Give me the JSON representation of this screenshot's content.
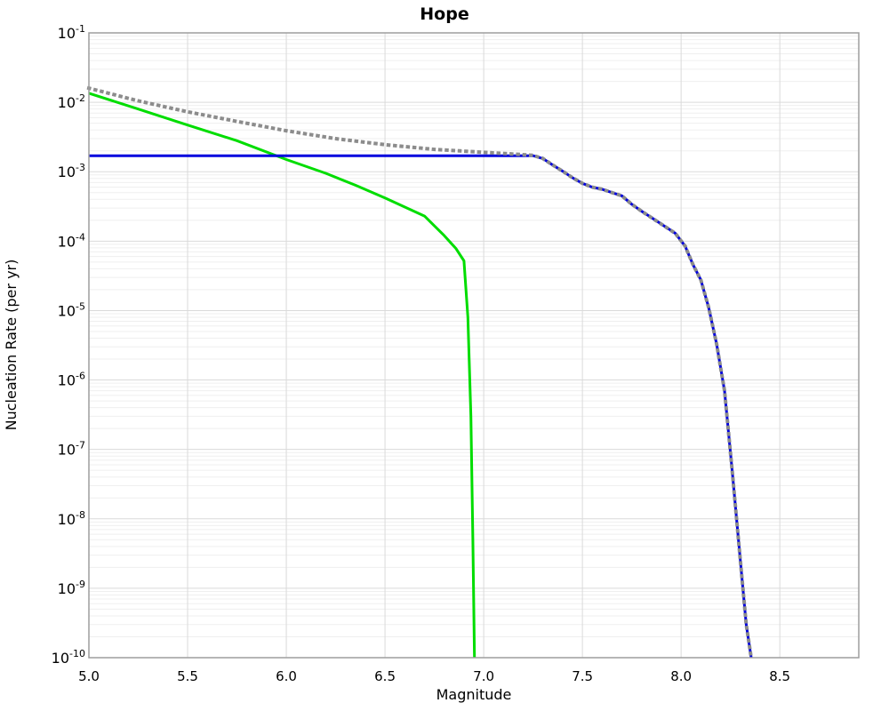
{
  "chart_data": {
    "type": "line",
    "title": "Hope",
    "xlabel": "Magnitude",
    "ylabel": "Nucleation Rate (per yr)",
    "xlim": [
      5.0,
      8.9
    ],
    "ylim": [
      1e-10,
      0.1
    ],
    "grid": true,
    "legend": "none",
    "x_ticks": [
      {
        "v": 5.0,
        "t": "5.0"
      },
      {
        "v": 5.5,
        "t": "5.5"
      },
      {
        "v": 6.0,
        "t": "6.0"
      },
      {
        "v": 6.5,
        "t": "6.5"
      },
      {
        "v": 7.0,
        "t": "7.0"
      },
      {
        "v": 7.5,
        "t": "7.5"
      },
      {
        "v": 8.0,
        "t": "8.0"
      },
      {
        "v": 8.5,
        "t": "8.5"
      }
    ],
    "y_tick_exponents": [
      -1,
      -2,
      -3,
      -4,
      -5,
      -6,
      -7,
      -8,
      -9,
      -10
    ],
    "series": [
      {
        "name": "solid-green",
        "color": "#00dd00",
        "style": "solid",
        "width": 3,
        "points": [
          [
            5.0,
            0.0135
          ],
          [
            5.25,
            0.008
          ],
          [
            5.5,
            0.0047
          ],
          [
            5.75,
            0.0028
          ],
          [
            6.0,
            0.0015
          ],
          [
            6.2,
            0.00095
          ],
          [
            6.35,
            0.00064
          ],
          [
            6.5,
            0.00042
          ],
          [
            6.7,
            0.00023
          ],
          [
            6.8,
            0.00012
          ],
          [
            6.86,
            7.8e-05
          ],
          [
            6.9,
            5.2e-05
          ],
          [
            6.92,
            8e-06
          ],
          [
            6.935,
            3e-07
          ],
          [
            6.945,
            5e-09
          ],
          [
            6.953,
            1e-10
          ]
        ]
      },
      {
        "name": "solid-blue",
        "color": "#0000dd",
        "style": "solid",
        "width": 3,
        "points": [
          [
            5.0,
            0.0017
          ],
          [
            7.25,
            0.0017
          ],
          [
            7.3,
            0.00155
          ],
          [
            7.35,
            0.00125
          ],
          [
            7.4,
            0.00102
          ],
          [
            7.45,
            0.00082
          ],
          [
            7.5,
            0.00068
          ],
          [
            7.55,
            0.0006
          ],
          [
            7.6,
            0.00056
          ],
          [
            7.65,
            0.0005
          ],
          [
            7.7,
            0.00045
          ],
          [
            7.75,
            0.00034
          ],
          [
            7.8,
            0.00027
          ],
          [
            7.87,
            0.0002
          ],
          [
            7.94,
            0.000148
          ],
          [
            7.97,
            0.00013
          ],
          [
            8.02,
            8.5e-05
          ],
          [
            8.06,
            4.6e-05
          ],
          [
            8.1,
            2.75e-05
          ],
          [
            8.14,
            1.1e-05
          ],
          [
            8.18,
            3.3e-06
          ],
          [
            8.22,
            7e-07
          ],
          [
            8.26,
            4.5e-08
          ],
          [
            8.3,
            2.5e-09
          ],
          [
            8.33,
            3e-10
          ],
          [
            8.355,
            1e-10
          ]
        ]
      },
      {
        "name": "dotted-gray",
        "color": "#8c8c8c",
        "style": "dotted",
        "width": 4,
        "points": [
          [
            5.0,
            0.016
          ],
          [
            5.25,
            0.0105
          ],
          [
            5.5,
            0.0073
          ],
          [
            5.75,
            0.0053
          ],
          [
            6.0,
            0.0039
          ],
          [
            6.25,
            0.003
          ],
          [
            6.5,
            0.00245
          ],
          [
            6.75,
            0.0021
          ],
          [
            7.0,
            0.0019
          ],
          [
            7.15,
            0.0018
          ],
          [
            7.25,
            0.00172
          ],
          [
            7.3,
            0.00155
          ],
          [
            7.35,
            0.00125
          ],
          [
            7.4,
            0.00102
          ],
          [
            7.45,
            0.00082
          ],
          [
            7.5,
            0.00068
          ],
          [
            7.55,
            0.0006
          ],
          [
            7.6,
            0.00056
          ],
          [
            7.65,
            0.0005
          ],
          [
            7.7,
            0.00045
          ],
          [
            7.75,
            0.00034
          ],
          [
            7.8,
            0.00027
          ],
          [
            7.87,
            0.0002
          ],
          [
            7.94,
            0.000148
          ],
          [
            7.97,
            0.00013
          ],
          [
            8.02,
            8.5e-05
          ],
          [
            8.06,
            4.6e-05
          ],
          [
            8.1,
            2.75e-05
          ],
          [
            8.14,
            1.1e-05
          ],
          [
            8.18,
            3.3e-06
          ],
          [
            8.22,
            7e-07
          ],
          [
            8.26,
            4.5e-08
          ],
          [
            8.3,
            2.5e-09
          ],
          [
            8.33,
            3e-10
          ],
          [
            8.355,
            1e-10
          ]
        ]
      }
    ]
  },
  "colors": {
    "background": "#ffffff",
    "grid_minor": "#efefef",
    "grid_major": "#dadada",
    "frame": "#9e9e9e",
    "text": "#000000"
  }
}
